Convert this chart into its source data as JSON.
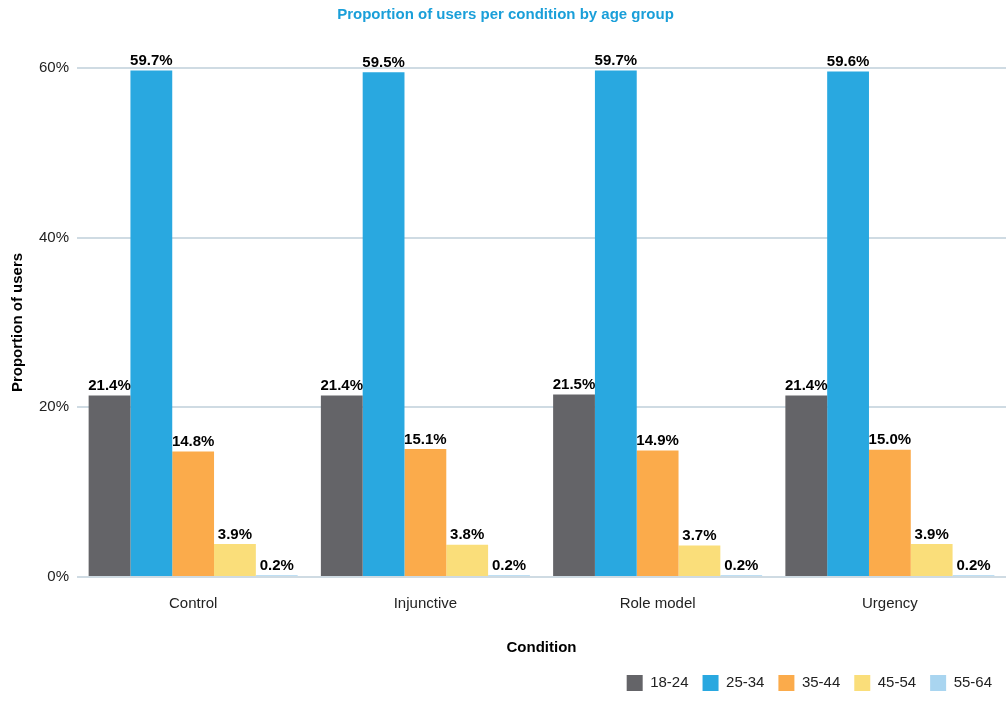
{
  "chart_data": {
    "type": "bar",
    "title": "Proportion of users per condition by age group",
    "xlabel": "Condition",
    "ylabel": "Proportion of users",
    "categories": [
      "Control",
      "Injunctive",
      "Role model",
      "Urgency"
    ],
    "series": [
      {
        "name": "18-24",
        "color": "#646468",
        "values": [
          21.4,
          21.4,
          21.5,
          21.4
        ],
        "value_labels": [
          "21.4%",
          "21.4%",
          "21.5%",
          "21.4%"
        ]
      },
      {
        "name": "25-34",
        "color": "#29a8e0",
        "values": [
          59.7,
          59.5,
          59.7,
          59.6
        ],
        "value_labels": [
          "59.7%",
          "59.5%",
          "59.7%",
          "59.6%"
        ]
      },
      {
        "name": "35-44",
        "color": "#fbab4b",
        "values": [
          14.8,
          15.1,
          14.9,
          15.0
        ],
        "value_labels": [
          "14.8%",
          "15.1%",
          "14.9%",
          "15.0%"
        ]
      },
      {
        "name": "45-54",
        "color": "#fade7a",
        "values": [
          3.9,
          3.8,
          3.7,
          3.9
        ],
        "value_labels": [
          "3.9%",
          "3.8%",
          "3.7%",
          "3.9%"
        ]
      },
      {
        "name": "55-64",
        "color": "#a9d5f0",
        "values": [
          0.2,
          0.2,
          0.2,
          0.2
        ],
        "value_labels": [
          "0.2%",
          "0.2%",
          "0.2%",
          "0.2%"
        ]
      }
    ],
    "ylim": [
      0,
      60
    ],
    "yticks": [
      {
        "value": 0,
        "label": "0%"
      },
      {
        "value": 20,
        "label": "20%"
      },
      {
        "value": 40,
        "label": "40%"
      },
      {
        "value": 60,
        "label": "60%"
      }
    ],
    "grid": "y",
    "legend": "bottom right"
  }
}
